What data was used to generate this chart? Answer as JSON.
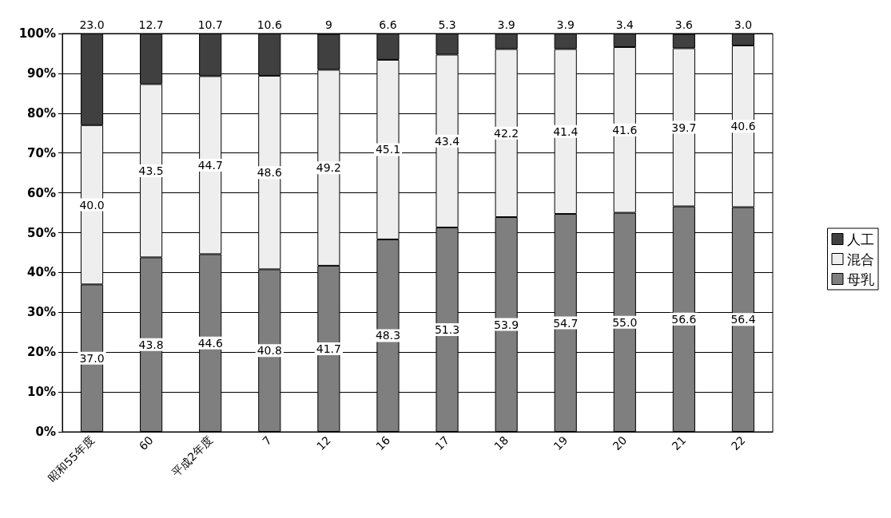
{
  "chart_data": {
    "type": "bar",
    "stacked": true,
    "categories": [
      "昭和55年度",
      "60",
      "平成2年度",
      "7",
      "12",
      "16",
      "17",
      "18",
      "19",
      "20",
      "21",
      "22"
    ],
    "series": [
      {
        "name": "母乳",
        "color": "#7f7f7f",
        "values": [
          37.0,
          43.8,
          44.6,
          40.8,
          41.7,
          48.3,
          51.3,
          53.9,
          54.7,
          55.0,
          56.6,
          56.4
        ],
        "value_labels": [
          "37.0",
          "43.8",
          "44.6",
          "40.8",
          "41.7",
          "48.3",
          "51.3",
          "53.9",
          "54.7",
          "55.0",
          "56.6",
          "56.4"
        ]
      },
      {
        "name": "混合",
        "color": "#eeeeee",
        "values": [
          40.0,
          43.5,
          44.7,
          48.6,
          49.2,
          45.1,
          43.4,
          42.2,
          41.4,
          41.6,
          39.7,
          40.6
        ],
        "value_labels": [
          "40.0",
          "43.5",
          "44.7",
          "48.6",
          "49.2",
          "45.1",
          "43.4",
          "42.2",
          "41.4",
          "41.6",
          "39.7",
          "40.6"
        ]
      },
      {
        "name": "人工",
        "color": "#404040",
        "values": [
          23.0,
          12.7,
          10.7,
          10.6,
          9,
          6.6,
          5.3,
          3.9,
          3.9,
          3.4,
          3.6,
          3.0
        ],
        "value_labels": [
          "23.0",
          "12.7",
          "10.7",
          "10.6",
          "9",
          "6.6",
          "5.3",
          "3.9",
          "3.9",
          "3.4",
          "3.6",
          "3.0"
        ]
      }
    ],
    "ylim": [
      0,
      100
    ],
    "yticks": [
      {
        "value": 0,
        "label": "0%"
      },
      {
        "value": 10,
        "label": "10%"
      },
      {
        "value": 20,
        "label": "20%"
      },
      {
        "value": 30,
        "label": "30%"
      },
      {
        "value": 40,
        "label": "40%"
      },
      {
        "value": 50,
        "label": "50%"
      },
      {
        "value": 60,
        "label": "60%"
      },
      {
        "value": 70,
        "label": "70%"
      },
      {
        "value": 80,
        "label": "80%"
      },
      {
        "value": 90,
        "label": "90%"
      },
      {
        "value": 100,
        "label": "100%"
      }
    ],
    "grid": "y",
    "legend": "right"
  }
}
